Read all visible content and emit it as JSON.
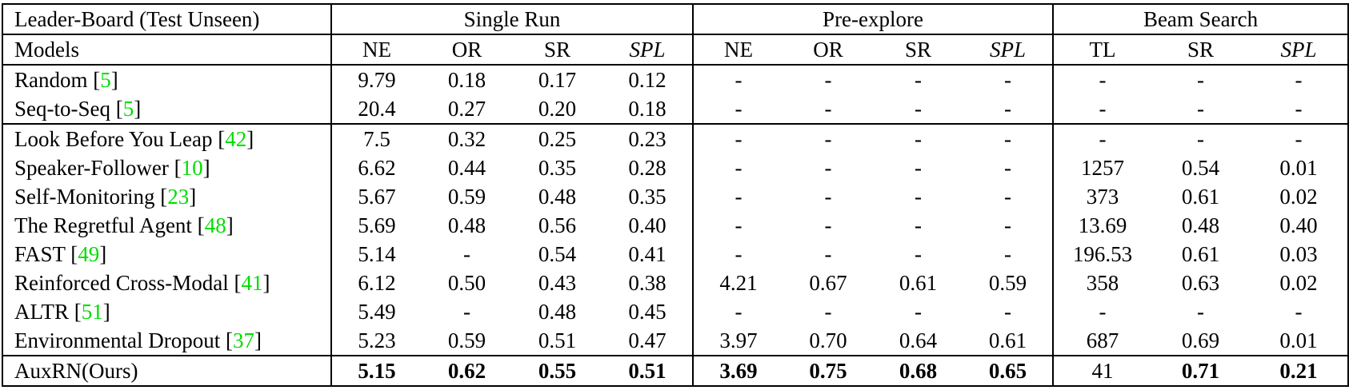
{
  "colors": {
    "citation_green": "#00dd00",
    "text": "#000000",
    "background": "#ffffff"
  },
  "table": {
    "corner_header": "Leader-Board (Test Unseen)",
    "models_header": "Models",
    "groups": [
      {
        "label": "Single Run",
        "columns": [
          {
            "label": "NE",
            "italic": false
          },
          {
            "label": "OR",
            "italic": false
          },
          {
            "label": "SR",
            "italic": false
          },
          {
            "label": "SPL",
            "italic": true
          }
        ]
      },
      {
        "label": "Pre-explore",
        "columns": [
          {
            "label": "NE",
            "italic": false
          },
          {
            "label": "OR",
            "italic": false
          },
          {
            "label": "SR",
            "italic": false
          },
          {
            "label": "SPL",
            "italic": true
          }
        ]
      },
      {
        "label": "Beam Search",
        "columns": [
          {
            "label": "TL",
            "italic": false
          },
          {
            "label": "SR",
            "italic": false
          },
          {
            "label": "SPL",
            "italic": true
          }
        ]
      }
    ],
    "row_groups": [
      [
        {
          "model": "Random",
          "cite": "5",
          "bold": false,
          "values": {
            "single_run": [
              "9.79",
              "0.18",
              "0.17",
              "0.12"
            ],
            "pre_explore": [
              "-",
              "-",
              "-",
              "-"
            ],
            "beam_search": [
              "-",
              "-",
              "-"
            ]
          }
        },
        {
          "model": "Seq-to-Seq",
          "cite": "5",
          "bold": false,
          "values": {
            "single_run": [
              "20.4",
              "0.27",
              "0.20",
              "0.18"
            ],
            "pre_explore": [
              "-",
              "-",
              "-",
              "-"
            ],
            "beam_search": [
              "-",
              "-",
              "-"
            ]
          }
        }
      ],
      [
        {
          "model": "Look Before You Leap",
          "cite": "42",
          "bold": false,
          "values": {
            "single_run": [
              "7.5",
              "0.32",
              "0.25",
              "0.23"
            ],
            "pre_explore": [
              "-",
              "-",
              "-",
              "-"
            ],
            "beam_search": [
              "-",
              "-",
              "-"
            ]
          }
        },
        {
          "model": "Speaker-Follower",
          "cite": "10",
          "bold": false,
          "values": {
            "single_run": [
              "6.62",
              "0.44",
              "0.35",
              "0.28"
            ],
            "pre_explore": [
              "-",
              "-",
              "-",
              "-"
            ],
            "beam_search": [
              "1257",
              "0.54",
              "0.01"
            ]
          }
        },
        {
          "model": "Self-Monitoring",
          "cite": "23",
          "bold": false,
          "values": {
            "single_run": [
              "5.67",
              "0.59",
              "0.48",
              "0.35"
            ],
            "pre_explore": [
              "-",
              "-",
              "-",
              "-"
            ],
            "beam_search": [
              "373",
              "0.61",
              "0.02"
            ]
          }
        },
        {
          "model": "The Regretful Agent",
          "cite": "48",
          "bold": false,
          "values": {
            "single_run": [
              "5.69",
              "0.48",
              "0.56",
              "0.40"
            ],
            "pre_explore": [
              "-",
              "-",
              "-",
              "-"
            ],
            "beam_search": [
              "13.69",
              "0.48",
              "0.40"
            ]
          }
        },
        {
          "model": "FAST",
          "cite": "49",
          "bold": false,
          "values": {
            "single_run": [
              "5.14",
              "-",
              "0.54",
              "0.41"
            ],
            "pre_explore": [
              "-",
              "-",
              "-",
              "-"
            ],
            "beam_search": [
              "196.53",
              "0.61",
              "0.03"
            ]
          }
        },
        {
          "model": "Reinforced Cross-Modal",
          "cite": "41",
          "bold": false,
          "values": {
            "single_run": [
              "6.12",
              "0.50",
              "0.43",
              "0.38"
            ],
            "pre_explore": [
              "4.21",
              "0.67",
              "0.61",
              "0.59"
            ],
            "beam_search": [
              "358",
              "0.63",
              "0.02"
            ]
          }
        },
        {
          "model": "ALTR",
          "cite": "51",
          "bold": false,
          "values": {
            "single_run": [
              "5.49",
              "-",
              "0.48",
              "0.45"
            ],
            "pre_explore": [
              "-",
              "-",
              "-",
              "-"
            ],
            "beam_search": [
              "-",
              "-",
              "-"
            ]
          }
        },
        {
          "model": "Environmental Dropout",
          "cite": "37",
          "bold": false,
          "values": {
            "single_run": [
              "5.23",
              "0.59",
              "0.51",
              "0.47"
            ],
            "pre_explore": [
              "3.97",
              "0.70",
              "0.64",
              "0.61"
            ],
            "beam_search": [
              "687",
              "0.69",
              "0.01"
            ]
          }
        }
      ],
      [
        {
          "model": "AuxRN(Ours)",
          "cite": null,
          "bold": true,
          "plain_cells": [
            [
              "beam_search",
              0
            ]
          ],
          "values": {
            "single_run": [
              "5.15",
              "0.62",
              "0.55",
              "0.51"
            ],
            "pre_explore": [
              "3.69",
              "0.75",
              "0.68",
              "0.65"
            ],
            "beam_search": [
              "41",
              "0.71",
              "0.21"
            ]
          }
        }
      ]
    ]
  }
}
